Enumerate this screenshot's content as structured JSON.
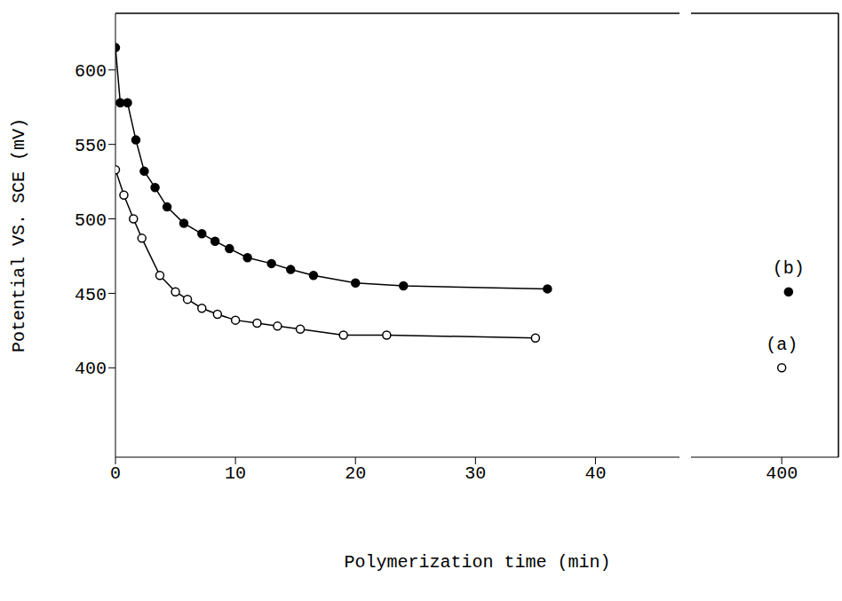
{
  "chart_data": [
    {
      "type": "line",
      "y_label": "Potential VS. SCE (mV)",
      "x_label": "Polymerization time (min)",
      "xlim": [
        0,
        47
      ],
      "xticks": [
        0,
        10,
        20,
        30,
        40
      ],
      "ylim": [
        340,
        638
      ],
      "yticks": [
        400,
        450,
        500,
        550,
        600
      ],
      "grid": false,
      "series": [
        {
          "name": "(a)",
          "color": "#000000",
          "marker": "open_circle",
          "line_style": "solid",
          "x": [
            0,
            0.7,
            1.5,
            2.2,
            3.7,
            5,
            6,
            7.2,
            8.5,
            10,
            11.8,
            13.5,
            15.4,
            19,
            22.6,
            35
          ],
          "values": [
            533,
            516,
            500,
            487,
            462,
            451,
            446,
            440,
            436,
            432,
            430,
            428,
            426,
            422,
            422,
            420
          ]
        },
        {
          "name": "(b)",
          "color": "#000000",
          "marker": "filled_circle",
          "line_style": "solid",
          "x": [
            0,
            0.4,
            1,
            1.7,
            2.4,
            3.3,
            4.3,
            5.7,
            7.2,
            8.3,
            9.5,
            11,
            13,
            14.6,
            16.5,
            20,
            24,
            36
          ],
          "values": [
            615,
            578,
            578,
            553,
            532,
            521,
            508,
            497,
            490,
            485,
            480,
            474,
            470,
            466,
            462,
            457,
            455,
            453
          ]
        }
      ]
    },
    {
      "type": "line",
      "xlim": [
        392,
        405
      ],
      "xticks": [
        400
      ],
      "ylim": [
        340,
        638
      ],
      "yticks": [
        400,
        450,
        500,
        550,
        600
      ],
      "grid": false,
      "tick_labels": "x",
      "series": [
        {
          "name": "(a)",
          "color": "#000000",
          "marker": "open_circle",
          "line_style": "solid",
          "x": [
            400
          ],
          "values": [
            400
          ]
        },
        {
          "name": "(b)",
          "color": "#000000",
          "marker": "filled_circle",
          "line_style": "solid",
          "x": [
            400.6
          ],
          "values": [
            451
          ]
        }
      ]
    }
  ]
}
